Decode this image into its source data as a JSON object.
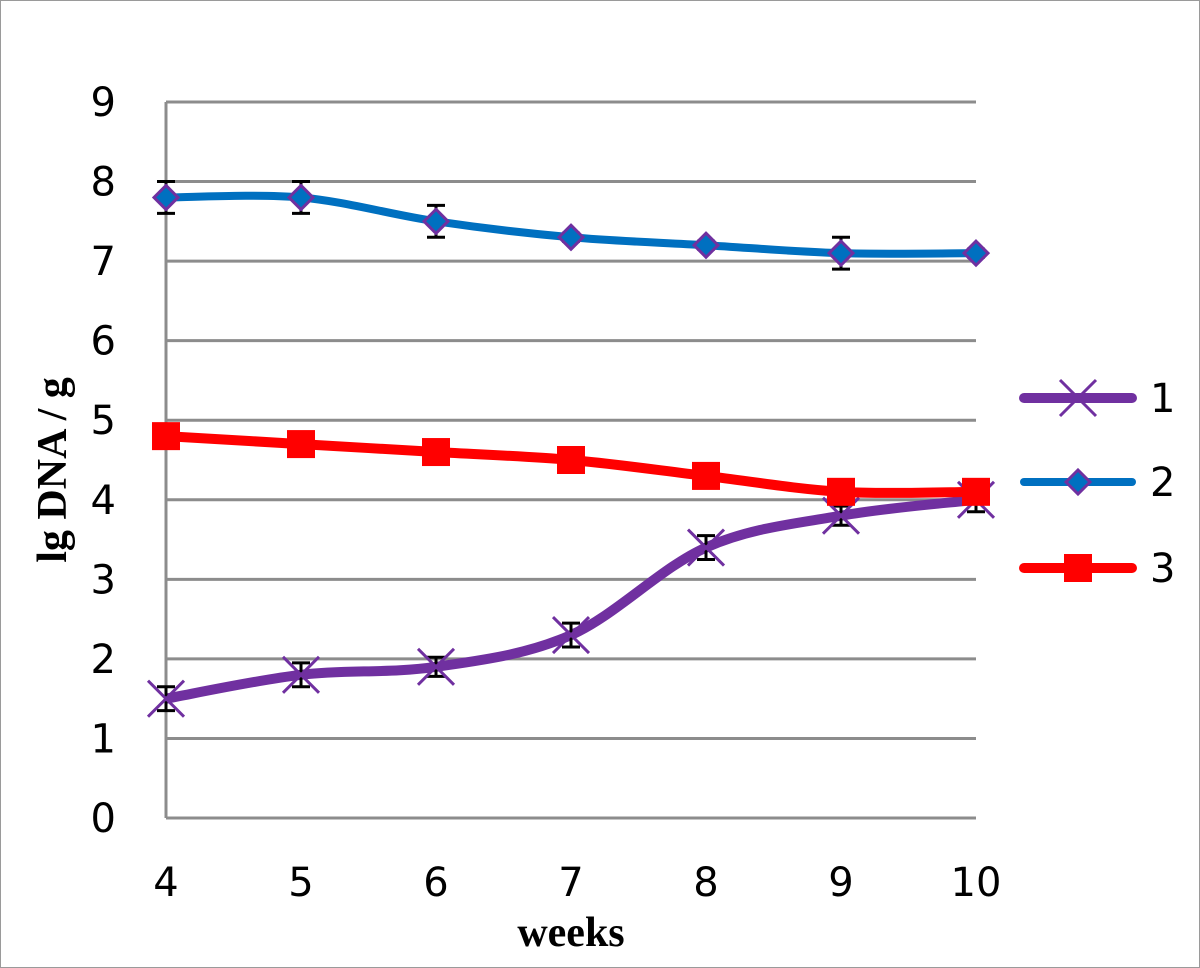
{
  "chart_data": {
    "type": "line",
    "title": "",
    "xlabel": "weeks",
    "ylabel": "lg DNA / g",
    "x": [
      4,
      5,
      6,
      7,
      8,
      9,
      10
    ],
    "ylim": [
      0,
      9
    ],
    "yticks": [
      0,
      1,
      2,
      3,
      4,
      5,
      6,
      7,
      8,
      9
    ],
    "grid": true,
    "legend": "right",
    "series": [
      {
        "name": "1",
        "color": "#7030a0",
        "marker": "x",
        "values": [
          1.5,
          1.8,
          1.9,
          2.3,
          3.4,
          3.8,
          4.0
        ],
        "errors": [
          0.15,
          0.15,
          0.12,
          0.15,
          0.15,
          0.12,
          0.15
        ]
      },
      {
        "name": "2",
        "color": "#0070c0",
        "marker": "diamond",
        "values": [
          7.8,
          7.8,
          7.5,
          7.3,
          7.2,
          7.1,
          7.1
        ],
        "errors": [
          0.2,
          0.2,
          0.2,
          0.05,
          0.05,
          0.2,
          0.05
        ]
      },
      {
        "name": "3",
        "color": "#ff0000",
        "marker": "square",
        "values": [
          4.8,
          4.7,
          4.6,
          4.5,
          4.3,
          4.1,
          4.1
        ],
        "errors": [
          0.15,
          0.15,
          0.15,
          0.1,
          0.1,
          0.15,
          0.1
        ]
      }
    ]
  }
}
